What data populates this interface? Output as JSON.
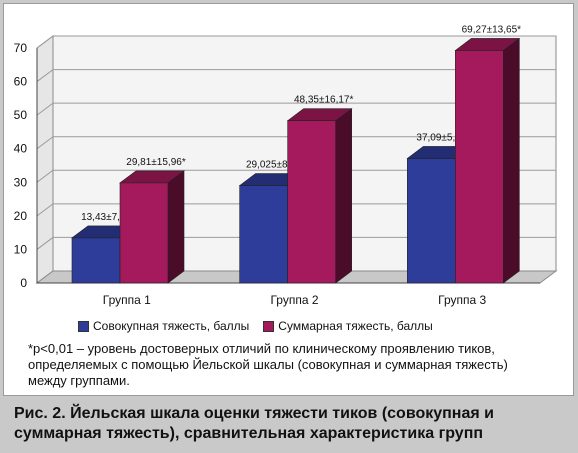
{
  "chart_data": {
    "type": "bar",
    "categories": [
      "Группа 1",
      "Группа 2",
      "Группа 3"
    ],
    "series": [
      {
        "name": "Совокупная тяжесть, баллы",
        "values": [
          13.43,
          29.025,
          37.09
        ],
        "labels": [
          "13,43±7,23*",
          "29,025±8,74*",
          "37,09±5,34*"
        ],
        "color": "#2e3c9a"
      },
      {
        "name": "Суммарная тяжесть, баллы",
        "values": [
          29.81,
          48.35,
          69.27
        ],
        "labels": [
          "29,81±15,96*",
          "48,35±16,17*",
          "69,27±13,65*"
        ],
        "color": "#a41a5c"
      }
    ],
    "ylim": [
      0,
      70
    ],
    "yticks": [
      "0",
      "10",
      "20",
      "30",
      "40",
      "50",
      "60",
      "70"
    ],
    "grid": true,
    "legend_position": "bottom"
  },
  "footnote": "*p<0,01 – уровень достоверных отличий по клиническому проявлению тиков, определяемых с помощью Йельской шкалы (совокупная и суммарная тяжесть) между группами.",
  "caption": "Рис. 2. Йельская шкала оценки тяжести тиков (совокупная и суммарная тяжесть), сравнительная характеристика групп"
}
